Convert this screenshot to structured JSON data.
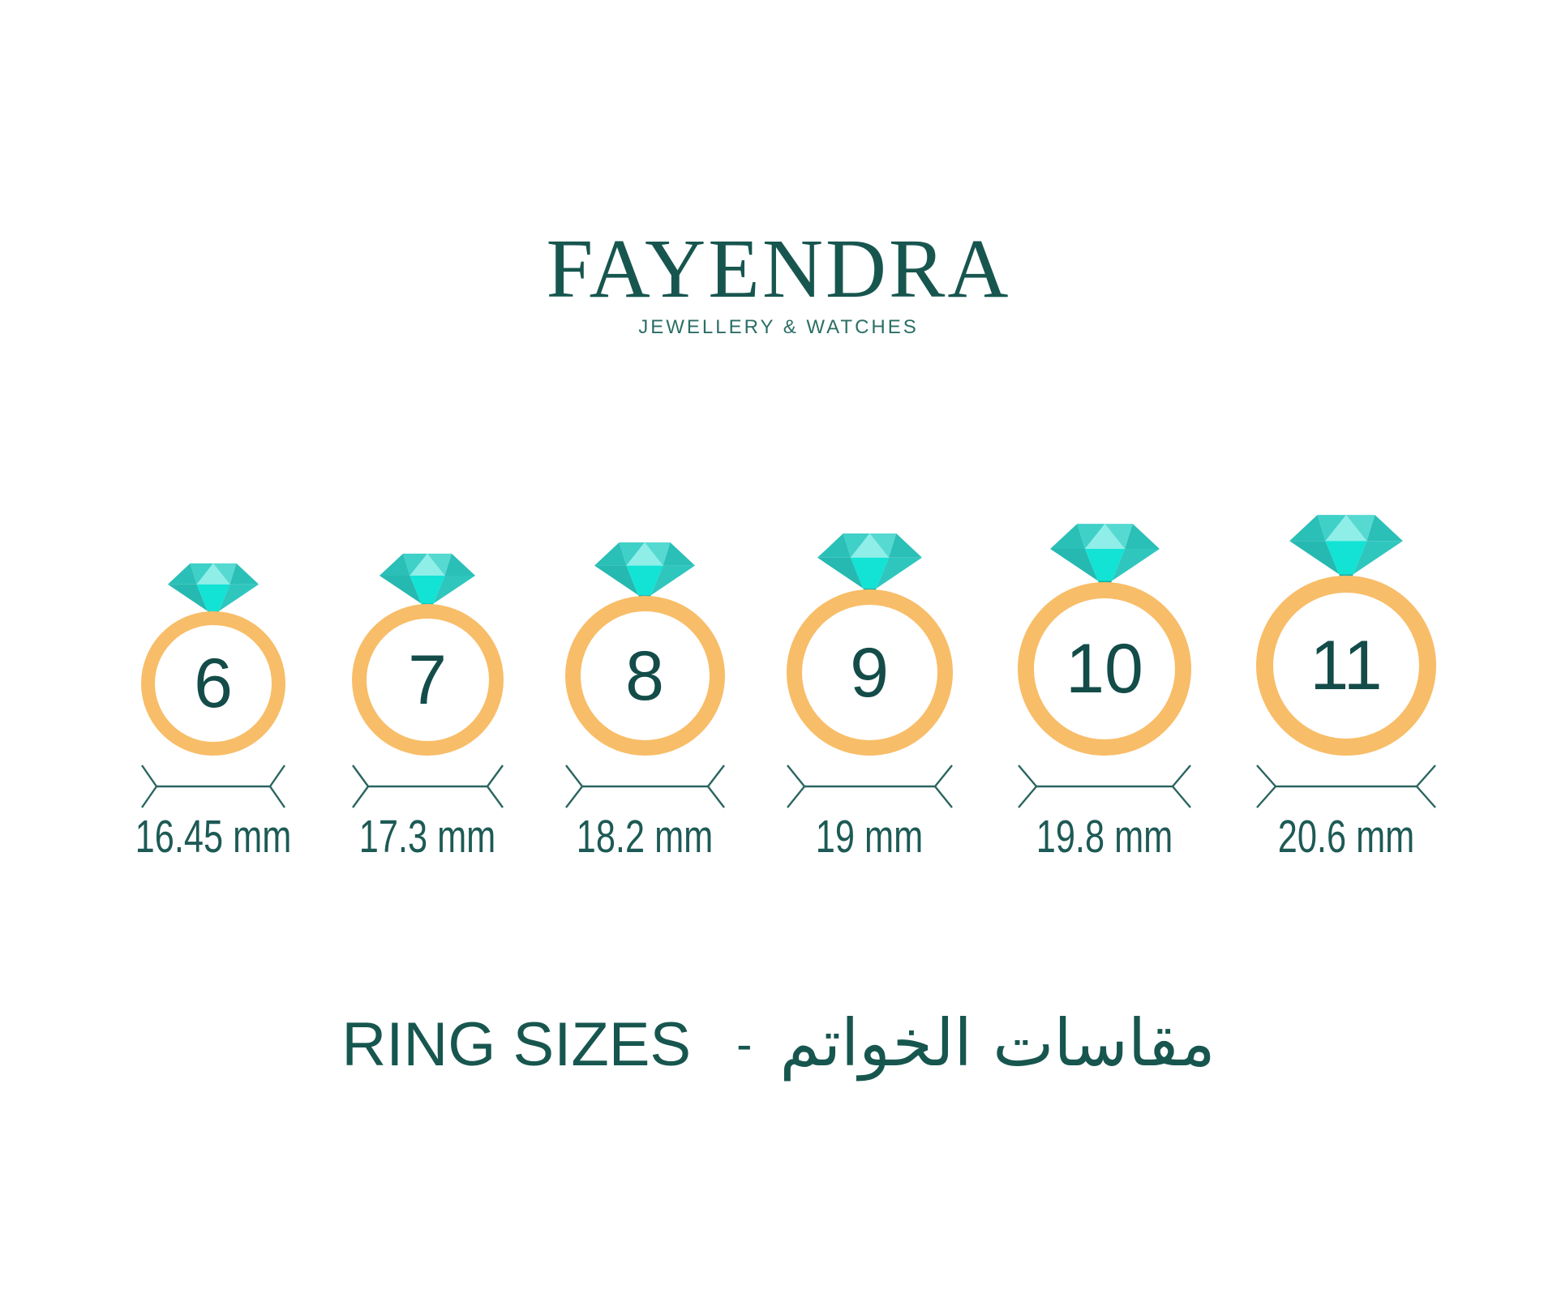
{
  "brand": {
    "name": "FAYENDRA",
    "tagline": "JEWELLERY & WATCHES"
  },
  "title": {
    "latin": "RING SIZES",
    "separator": "-",
    "arabic": "مقاسات الخواتم"
  },
  "rings": [
    {
      "size": "6",
      "diameter_label": "16.45 mm",
      "diameter_mm": 16.45
    },
    {
      "size": "7",
      "diameter_label": "17.3 mm",
      "diameter_mm": 17.3
    },
    {
      "size": "8",
      "diameter_label": "18.2 mm",
      "diameter_mm": 18.2
    },
    {
      "size": "9",
      "diameter_label": "19 mm",
      "diameter_mm": 19.0
    },
    {
      "size": "10",
      "diameter_label": "19.8 mm",
      "diameter_mm": 19.8
    },
    {
      "size": "11",
      "diameter_label": "20.6 mm",
      "diameter_mm": 20.6
    }
  ],
  "colors": {
    "logo_teal": "#17564f",
    "tagline_teal": "#2b6e66",
    "number_teal": "#134c49",
    "label_teal": "#1d5a55",
    "dimension_line": "#2a6560",
    "band_gold": "#f8bd68",
    "diamond": {
      "corner": "#2abfb7",
      "upper_left": "#3fd0c8",
      "center_light": "#8feee8",
      "upper_right": "#55d9d1",
      "flank_left": "#26b9b1",
      "flank_right": "#2fc6be",
      "pavilion_bright": "#12e3d5",
      "tip_seat": "#0fb0a8"
    }
  }
}
